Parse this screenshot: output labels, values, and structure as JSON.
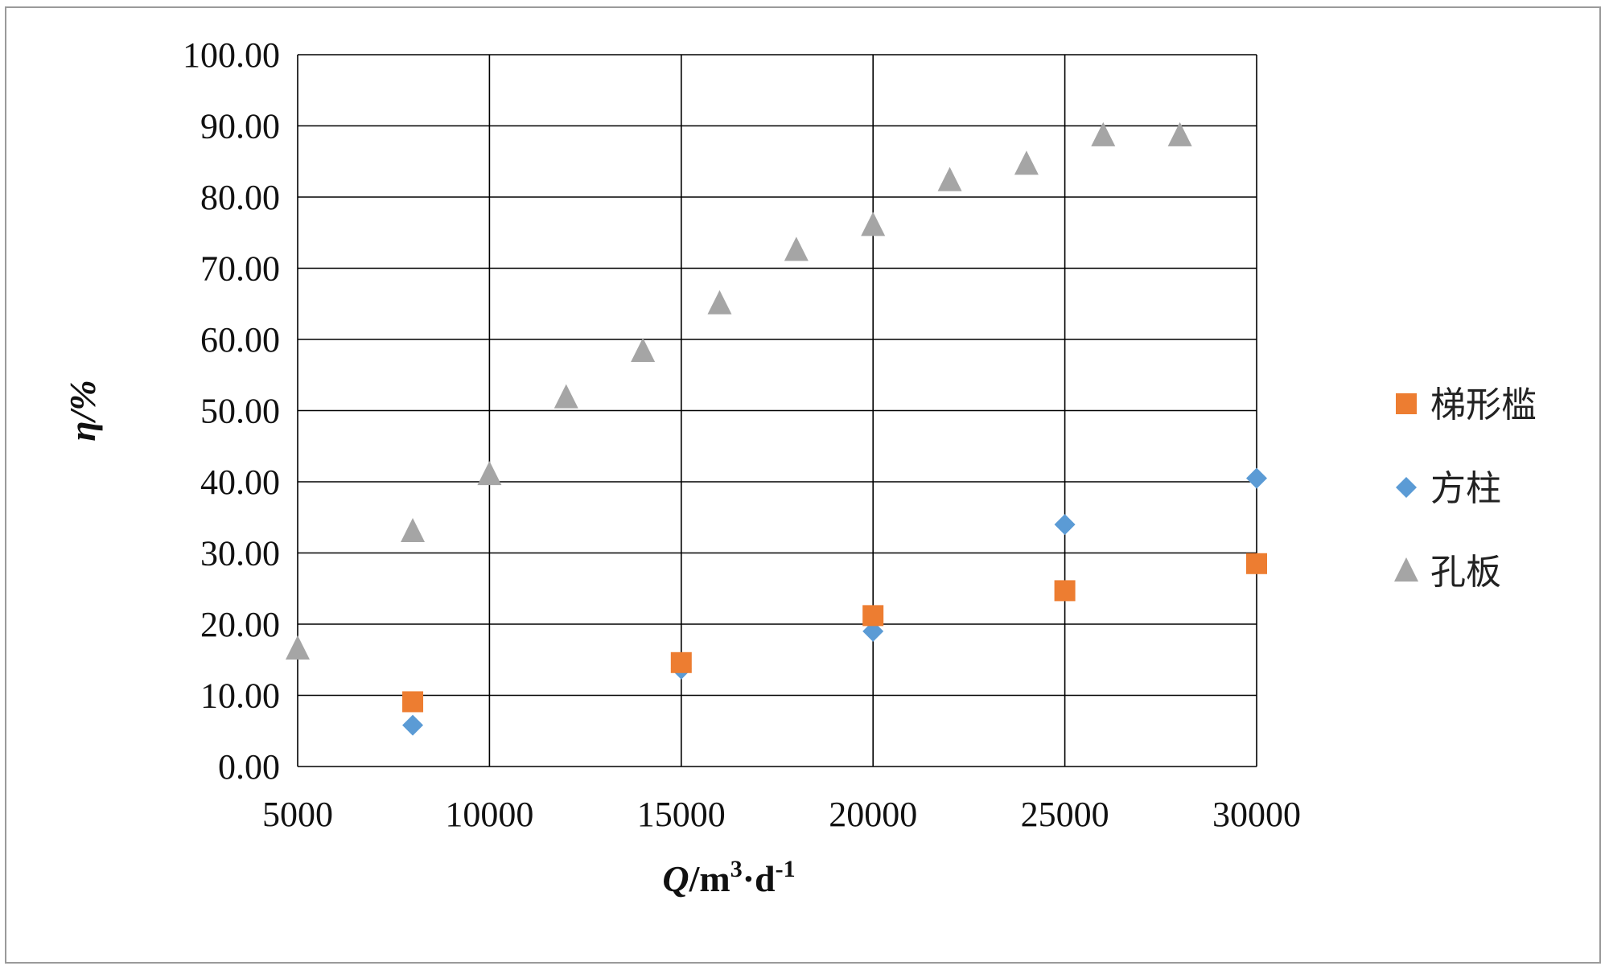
{
  "chart_data": {
    "type": "scatter",
    "title": "",
    "xlabel": {
      "italic_part": "Q",
      "text": "/m",
      "sup1": "3",
      "mid": "·d",
      "sup2": "-1"
    },
    "ylabel": "η/%",
    "xlim": [
      5000,
      30000
    ],
    "ylim": [
      0,
      100
    ],
    "x_ticks": [
      "5000",
      "10000",
      "15000",
      "20000",
      "25000",
      "30000"
    ],
    "y_ticks": [
      "0.00",
      "10.00",
      "20.00",
      "30.00",
      "40.00",
      "50.00",
      "60.00",
      "70.00",
      "80.00",
      "90.00",
      "100.00"
    ],
    "grid": true,
    "legend_position": "right",
    "series": [
      {
        "name": "梯形槛",
        "marker": "square",
        "color": "#ED7D31",
        "points": [
          [
            8000,
            9.1
          ],
          [
            15000,
            14.6
          ],
          [
            20000,
            21.2
          ],
          [
            25000,
            24.7
          ],
          [
            30000,
            28.5
          ]
        ]
      },
      {
        "name": "方柱",
        "marker": "diamond",
        "color": "#5B9BD5",
        "points": [
          [
            8000,
            5.8
          ],
          [
            15000,
            13.7
          ],
          [
            20000,
            19.0
          ],
          [
            25000,
            34.0
          ],
          [
            30000,
            40.5
          ]
        ]
      },
      {
        "name": "孔板",
        "marker": "triangle",
        "color": "#A5A5A5",
        "points": [
          [
            5000,
            16.5
          ],
          [
            8000,
            33.0
          ],
          [
            10000,
            41.0
          ],
          [
            12000,
            51.8
          ],
          [
            14000,
            58.3
          ],
          [
            16000,
            65.0
          ],
          [
            18000,
            72.5
          ],
          [
            20000,
            76.0
          ],
          [
            22000,
            82.3
          ],
          [
            24000,
            84.6
          ],
          [
            26000,
            88.6
          ],
          [
            28000,
            88.6
          ]
        ]
      }
    ]
  }
}
